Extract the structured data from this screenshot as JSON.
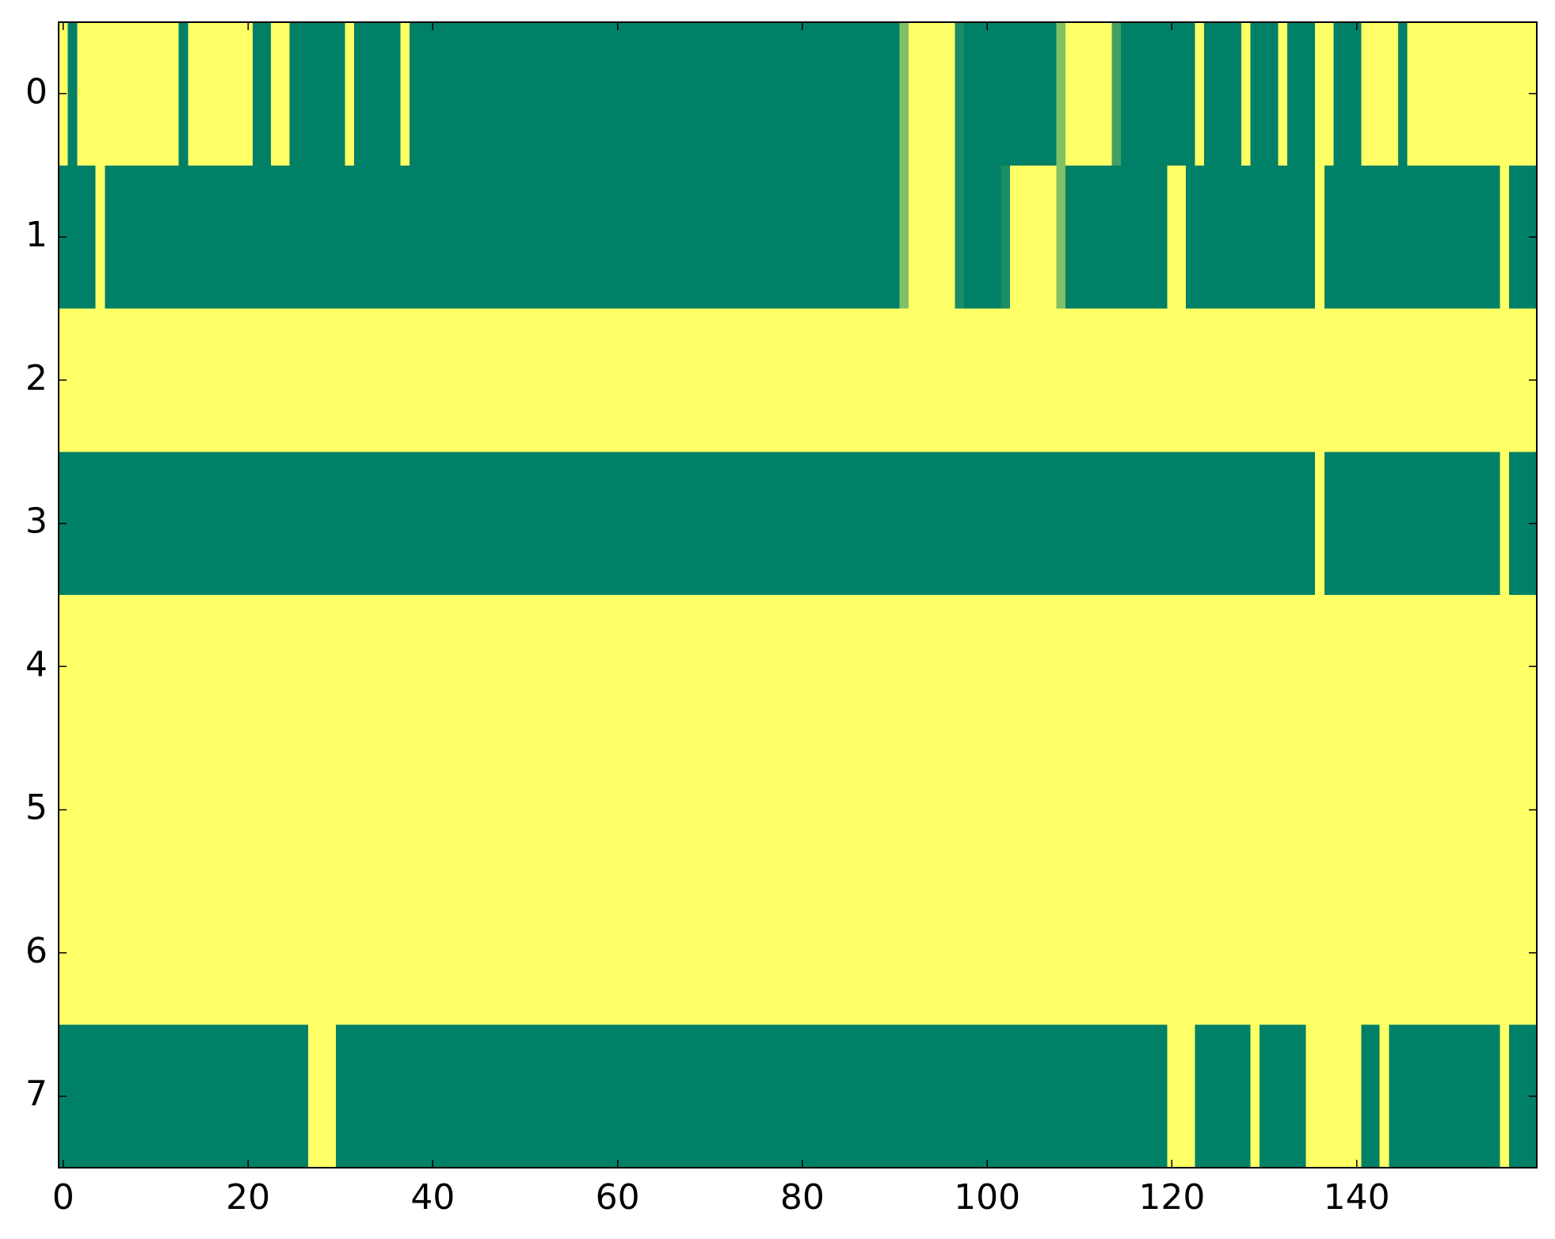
{
  "chart_data": {
    "type": "heatmap",
    "colors": [
      "#008066",
      "#ffff66"
    ],
    "xlim": [
      -0.5,
      159.5
    ],
    "ylim": [
      7.5,
      -0.5
    ],
    "xticks": [
      0,
      20,
      40,
      60,
      80,
      100,
      120,
      140
    ],
    "yticks": [
      0,
      1,
      2,
      3,
      4,
      5,
      6,
      7
    ],
    "values": [
      [
        1,
        0,
        1,
        1,
        1,
        1,
        1,
        1,
        1,
        1,
        1,
        1,
        1,
        0,
        1,
        1,
        1,
        1,
        1,
        1,
        1,
        0,
        0,
        1,
        1,
        0,
        0,
        0,
        0,
        0,
        0,
        1,
        0,
        0,
        0,
        0,
        0,
        1,
        0,
        0,
        0,
        0,
        0,
        0,
        0,
        0,
        0,
        0,
        0,
        0,
        0,
        0,
        0,
        0,
        0,
        0,
        0,
        0,
        0,
        0,
        0,
        0,
        0,
        0,
        0,
        0,
        0,
        0,
        0,
        0,
        0,
        0,
        0,
        0,
        0,
        0,
        0,
        0,
        0,
        0,
        0,
        0,
        0,
        0,
        0,
        0,
        0,
        0,
        0,
        0,
        0,
        0.5,
        1,
        1,
        1,
        1,
        1,
        0.1,
        0,
        0,
        0,
        0,
        0,
        0,
        0,
        0,
        0,
        0,
        0.5,
        1,
        1,
        1,
        1,
        1,
        0.25,
        0,
        0,
        0,
        0,
        0,
        0,
        0,
        0,
        1,
        0,
        0,
        0,
        0,
        1,
        0,
        0,
        0,
        1,
        0,
        0,
        0,
        1,
        1,
        0,
        0,
        0,
        1,
        1,
        1,
        1,
        0,
        1,
        1,
        1,
        1,
        1,
        1,
        1,
        1,
        1,
        1,
        1,
        1,
        1,
        1
      ],
      [
        0,
        0,
        0,
        0,
        1,
        0,
        0,
        0,
        0,
        0,
        0,
        0,
        0,
        0,
        0,
        0,
        0,
        0,
        0,
        0,
        0,
        0,
        0,
        0,
        0,
        0,
        0,
        0,
        0,
        0,
        0,
        0,
        0,
        0,
        0,
        0,
        0,
        0,
        0,
        0,
        0,
        0,
        0,
        0,
        0,
        0,
        0,
        0,
        0,
        0,
        0,
        0,
        0,
        0,
        0,
        0,
        0,
        0,
        0,
        0,
        0,
        0,
        0,
        0,
        0,
        0,
        0,
        0,
        0,
        0,
        0,
        0,
        0,
        0,
        0,
        0,
        0,
        0,
        0,
        0,
        0,
        0,
        0,
        0,
        0,
        0,
        0,
        0,
        0,
        0,
        0,
        0.5,
        1,
        1,
        1,
        1,
        1,
        0.1,
        0,
        0,
        0,
        0,
        0.1,
        1,
        1,
        1,
        1,
        1,
        0.5,
        0,
        0,
        0,
        0,
        0,
        0,
        0,
        0,
        0,
        0,
        0,
        1,
        1,
        0,
        0,
        0,
        0,
        0,
        0,
        0,
        0,
        0,
        0,
        0,
        0,
        0,
        0,
        1,
        0,
        0,
        0,
        0,
        0,
        0,
        0,
        0,
        0,
        0,
        0,
        0,
        0,
        0,
        0,
        0,
        0,
        0,
        0,
        1,
        0,
        0,
        0
      ],
      [
        1,
        1,
        1,
        1,
        1,
        1,
        1,
        1,
        1,
        1,
        1,
        1,
        1,
        1,
        1,
        1,
        1,
        1,
        1,
        1,
        1,
        1,
        1,
        1,
        1,
        1,
        1,
        1,
        1,
        1,
        1,
        1,
        1,
        1,
        1,
        1,
        1,
        1,
        1,
        1,
        1,
        1,
        1,
        1,
        1,
        1,
        1,
        1,
        1,
        1,
        1,
        1,
        1,
        1,
        1,
        1,
        1,
        1,
        1,
        1,
        1,
        1,
        1,
        1,
        1,
        1,
        1,
        1,
        1,
        1,
        1,
        1,
        1,
        1,
        1,
        1,
        1,
        1,
        1,
        1,
        1,
        1,
        1,
        1,
        1,
        1,
        1,
        1,
        1,
        1,
        1,
        1,
        1,
        1,
        1,
        1,
        1,
        1,
        1,
        1,
        1,
        1,
        1,
        1,
        1,
        1,
        1,
        1,
        1,
        1,
        1,
        1,
        1,
        1,
        1,
        1,
        1,
        1,
        1,
        1,
        1,
        1,
        1,
        1,
        1,
        1,
        1,
        1,
        1,
        1,
        1,
        1,
        1,
        1,
        1,
        1,
        1,
        1,
        1,
        1,
        1,
        1,
        1,
        1,
        1,
        1,
        1,
        1,
        1,
        1,
        1,
        1,
        1,
        1,
        1,
        1,
        1,
        1,
        1,
        1
      ],
      [
        0,
        0,
        0,
        0,
        0,
        0,
        0,
        0,
        0,
        0,
        0,
        0,
        0,
        0,
        0,
        0,
        0,
        0,
        0,
        0,
        0,
        0,
        0,
        0,
        0,
        0,
        0,
        0,
        0,
        0,
        0,
        0,
        0,
        0,
        0,
        0,
        0,
        0,
        0,
        0,
        0,
        0,
        0,
        0,
        0,
        0,
        0,
        0,
        0,
        0,
        0,
        0,
        0,
        0,
        0,
        0,
        0,
        0,
        0,
        0,
        0,
        0,
        0,
        0,
        0,
        0,
        0,
        0,
        0,
        0,
        0,
        0,
        0,
        0,
        0,
        0,
        0,
        0,
        0,
        0,
        0,
        0,
        0,
        0,
        0,
        0,
        0,
        0,
        0,
        0,
        0,
        0,
        0,
        0,
        0,
        0,
        0,
        0,
        0,
        0,
        0,
        0,
        0,
        0,
        0,
        0,
        0,
        0,
        0,
        0,
        0,
        0,
        0,
        0,
        0,
        0,
        0,
        0,
        0,
        0,
        0,
        0,
        0,
        0,
        0,
        0,
        0,
        0,
        0,
        0,
        0,
        0,
        0,
        0,
        0,
        0,
        1,
        0,
        0,
        0,
        0,
        0,
        0,
        0,
        0,
        0,
        0,
        0,
        0,
        0,
        0,
        0,
        0,
        0,
        0,
        0,
        1,
        0,
        0,
        0
      ],
      [
        1,
        1,
        1,
        1,
        1,
        1,
        1,
        1,
        1,
        1,
        1,
        1,
        1,
        1,
        1,
        1,
        1,
        1,
        1,
        1,
        1,
        1,
        1,
        1,
        1,
        1,
        1,
        1,
        1,
        1,
        1,
        1,
        1,
        1,
        1,
        1,
        1,
        1,
        1,
        1,
        1,
        1,
        1,
        1,
        1,
        1,
        1,
        1,
        1,
        1,
        1,
        1,
        1,
        1,
        1,
        1,
        1,
        1,
        1,
        1,
        1,
        1,
        1,
        1,
        1,
        1,
        1,
        1,
        1,
        1,
        1,
        1,
        1,
        1,
        1,
        1,
        1,
        1,
        1,
        1,
        1,
        1,
        1,
        1,
        1,
        1,
        1,
        1,
        1,
        1,
        1,
        1,
        1,
        1,
        1,
        1,
        1,
        1,
        1,
        1,
        1,
        1,
        1,
        1,
        1,
        1,
        1,
        1,
        1,
        1,
        1,
        1,
        1,
        1,
        1,
        1,
        1,
        1,
        1,
        1,
        1,
        1,
        1,
        1,
        1,
        1,
        1,
        1,
        1,
        1,
        1,
        1,
        1,
        1,
        1,
        1,
        1,
        1,
        1,
        1,
        1,
        1,
        1,
        1,
        1,
        1,
        1,
        1,
        1,
        1,
        1,
        1,
        1,
        1,
        1,
        1,
        1,
        1,
        1,
        1
      ],
      [
        1,
        1,
        1,
        1,
        1,
        1,
        1,
        1,
        1,
        1,
        1,
        1,
        1,
        1,
        1,
        1,
        1,
        1,
        1,
        1,
        1,
        1,
        1,
        1,
        1,
        1,
        1,
        1,
        1,
        1,
        1,
        1,
        1,
        1,
        1,
        1,
        1,
        1,
        1,
        1,
        1,
        1,
        1,
        1,
        1,
        1,
        1,
        1,
        1,
        1,
        1,
        1,
        1,
        1,
        1,
        1,
        1,
        1,
        1,
        1,
        1,
        1,
        1,
        1,
        1,
        1,
        1,
        1,
        1,
        1,
        1,
        1,
        1,
        1,
        1,
        1,
        1,
        1,
        1,
        1,
        1,
        1,
        1,
        1,
        1,
        1,
        1,
        1,
        1,
        1,
        1,
        1,
        1,
        1,
        1,
        1,
        1,
        1,
        1,
        1,
        1,
        1,
        1,
        1,
        1,
        1,
        1,
        1,
        1,
        1,
        1,
        1,
        1,
        1,
        1,
        1,
        1,
        1,
        1,
        1,
        1,
        1,
        1,
        1,
        1,
        1,
        1,
        1,
        1,
        1,
        1,
        1,
        1,
        1,
        1,
        1,
        1,
        1,
        1,
        1,
        1,
        1,
        1,
        1,
        1,
        1,
        1,
        1,
        1,
        1,
        1,
        1,
        1,
        1,
        1,
        1,
        1,
        1,
        1,
        1
      ],
      [
        1,
        1,
        1,
        1,
        1,
        1,
        1,
        1,
        1,
        1,
        1,
        1,
        1,
        1,
        1,
        1,
        1,
        1,
        1,
        1,
        1,
        1,
        1,
        1,
        1,
        1,
        1,
        1,
        1,
        1,
        1,
        1,
        1,
        1,
        1,
        1,
        1,
        1,
        1,
        1,
        1,
        1,
        1,
        1,
        1,
        1,
        1,
        1,
        1,
        1,
        1,
        1,
        1,
        1,
        1,
        1,
        1,
        1,
        1,
        1,
        1,
        1,
        1,
        1,
        1,
        1,
        1,
        1,
        1,
        1,
        1,
        1,
        1,
        1,
        1,
        1,
        1,
        1,
        1,
        1,
        1,
        1,
        1,
        1,
        1,
        1,
        1,
        1,
        1,
        1,
        1,
        1,
        1,
        1,
        1,
        1,
        1,
        1,
        1,
        1,
        1,
        1,
        1,
        1,
        1,
        1,
        1,
        1,
        1,
        1,
        1,
        1,
        1,
        1,
        1,
        1,
        1,
        1,
        1,
        1,
        1,
        1,
        1,
        1,
        1,
        1,
        1,
        1,
        1,
        1,
        1,
        1,
        1,
        1,
        1,
        1,
        1,
        1,
        1,
        1,
        1,
        1,
        1,
        1,
        1,
        1,
        1,
        1,
        1,
        1,
        1,
        1,
        1,
        1,
        1,
        1,
        1,
        1,
        1,
        1
      ],
      [
        0,
        0,
        0,
        0,
        0,
        0,
        0,
        0,
        0,
        0,
        0,
        0,
        0,
        0,
        0,
        0,
        0,
        0,
        0,
        0,
        0,
        0,
        0,
        0,
        0,
        0,
        0,
        1,
        1,
        1,
        0,
        0,
        0,
        0,
        0,
        0,
        0,
        0,
        0,
        0,
        0,
        0,
        0,
        0,
        0,
        0,
        0,
        0,
        0,
        0,
        0,
        0,
        0,
        0,
        0,
        0,
        0,
        0,
        0,
        0,
        0,
        0,
        0,
        0,
        0,
        0,
        0,
        0,
        0,
        0,
        0,
        0,
        0,
        0,
        0,
        0,
        0,
        0,
        0,
        0,
        0,
        0,
        0,
        0,
        0,
        0,
        0,
        0,
        0,
        0,
        0,
        0,
        0,
        0,
        0,
        0,
        0,
        0,
        0,
        0,
        0,
        0,
        0,
        0,
        0,
        0,
        0,
        0,
        0,
        0,
        0,
        0,
        0,
        0,
        0,
        0,
        0,
        0,
        0,
        0,
        1,
        1,
        1,
        0,
        0,
        0,
        0,
        0,
        0,
        1,
        0,
        0,
        0,
        0,
        0,
        1,
        1,
        1,
        1,
        1,
        1,
        0,
        0,
        1,
        0,
        0,
        0,
        0,
        0,
        0,
        0,
        0,
        0,
        0,
        0,
        0,
        1,
        0,
        0,
        0
      ]
    ]
  }
}
